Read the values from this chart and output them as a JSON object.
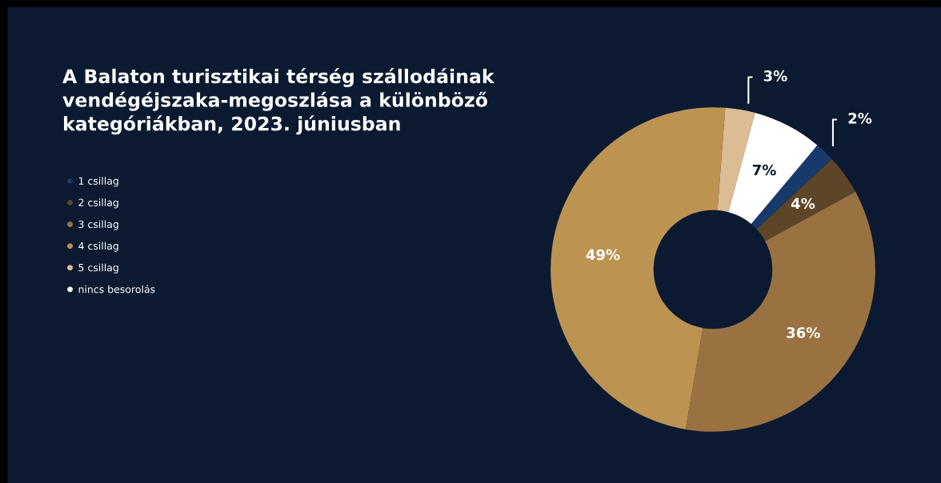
{
  "chart_data": {
    "type": "donut",
    "title": "A Balaton turisztikai térség szállodáinak\nvendégéjszaka-megoszlása a különböző\nkategóriákban, 2023. júniusban",
    "categories": [
      "1 csillag",
      "2 csillag",
      "3 csillag",
      "4 csillag",
      "5 csillag",
      "nincs besorolás"
    ],
    "values": [
      2,
      4,
      36,
      49,
      3,
      7
    ],
    "colors": [
      "#173a6b",
      "#5e4528",
      "#9a7242",
      "#bd9352",
      "#dcbc93",
      "#ffffff"
    ],
    "value_labels": [
      "2%",
      "4%",
      "36%",
      "49%",
      "3%",
      "7%"
    ],
    "legend": "left"
  }
}
